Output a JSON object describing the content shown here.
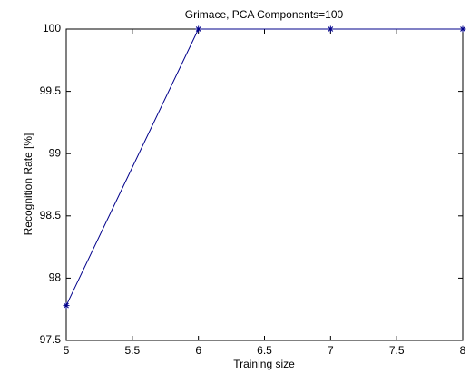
{
  "chart_data": {
    "type": "line",
    "title": "Grimace, PCA Components=100",
    "xlabel": "Training size",
    "ylabel": "Recognition Rate [%]",
    "x": [
      5,
      6,
      7,
      8
    ],
    "series": [
      {
        "color": "#00008b",
        "marker": "asterisk",
        "values": [
          97.78,
          100,
          100,
          100
        ]
      }
    ],
    "xlim": [
      5,
      8
    ],
    "xticks": [
      5,
      5.5,
      6,
      6.5,
      7,
      7.5,
      8
    ],
    "ylim": [
      97.5,
      100
    ],
    "yticks": [
      97.5,
      98,
      98.5,
      99,
      99.5,
      100
    ],
    "grid": false
  }
}
